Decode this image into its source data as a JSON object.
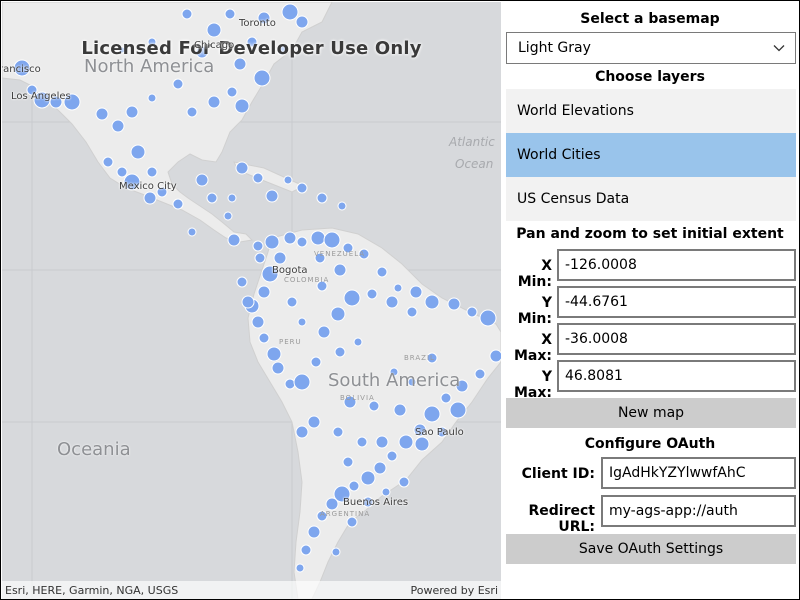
{
  "map": {
    "watermark": "Licensed For Developer Use Only",
    "labels": {
      "north_america": "North America",
      "south_america": "South America",
      "oceania": "Oceania",
      "atlantic": "Atlantic",
      "ocean": "Ocean",
      "toronto": "Toronto",
      "chicago": "Chicago",
      "los_angeles": "Los Angeles",
      "san_francisco": "San Francisco",
      "mexico_city": "Mexico City",
      "bogota": "Bogota",
      "sao_paulo": "Sao Paulo",
      "buenos_aires": "Buenos Aires",
      "venezuela": "VENEZUELA",
      "colombia": "COLOMBIA",
      "peru": "PERU",
      "brazil": "BRAZIL",
      "argentina": "ARGENTINA",
      "bolivia": "BOLIVIA"
    },
    "attribution_left": "Esri, HERE, Garmin, NGA, USGS",
    "attribution_right": "Powered by Esri",
    "colors": {
      "background": "#d7d9dc",
      "land": "#ececec",
      "city_fill": "#7ea6ee",
      "city_stroke": "#ffffff"
    }
  },
  "panel": {
    "basemap_title": "Select a basemap",
    "basemap_selected": "Light Gray",
    "layers_title": "Choose layers",
    "layers": [
      {
        "label": "World Elevations",
        "selected": false
      },
      {
        "label": "World Cities",
        "selected": true
      },
      {
        "label": "US Census Data",
        "selected": false
      }
    ],
    "extent_title": "Pan and zoom to set initial extent",
    "extent": {
      "xmin_label": "X Min:",
      "xmin": "-126.0008",
      "ymin_label": "Y Min:",
      "ymin": "-44.6761",
      "xmax_label": "X Max:",
      "xmax": "-36.0008",
      "ymax_label": "Y Max:",
      "ymax": "46.8081"
    },
    "new_map_label": "New map",
    "oauth_title": "Configure OAuth",
    "client_id_label": "Client ID:",
    "client_id": "IgAdHkYZYlwwfAhC",
    "redirect_label": "Redirect URL:",
    "redirect_url": "my-ags-app://auth",
    "save_label": "Save OAuth Settings",
    "colors": {
      "selected_layer": "#99c4eb",
      "layer_bg": "#f2f2f2",
      "button_bg": "#cccccc"
    }
  }
}
